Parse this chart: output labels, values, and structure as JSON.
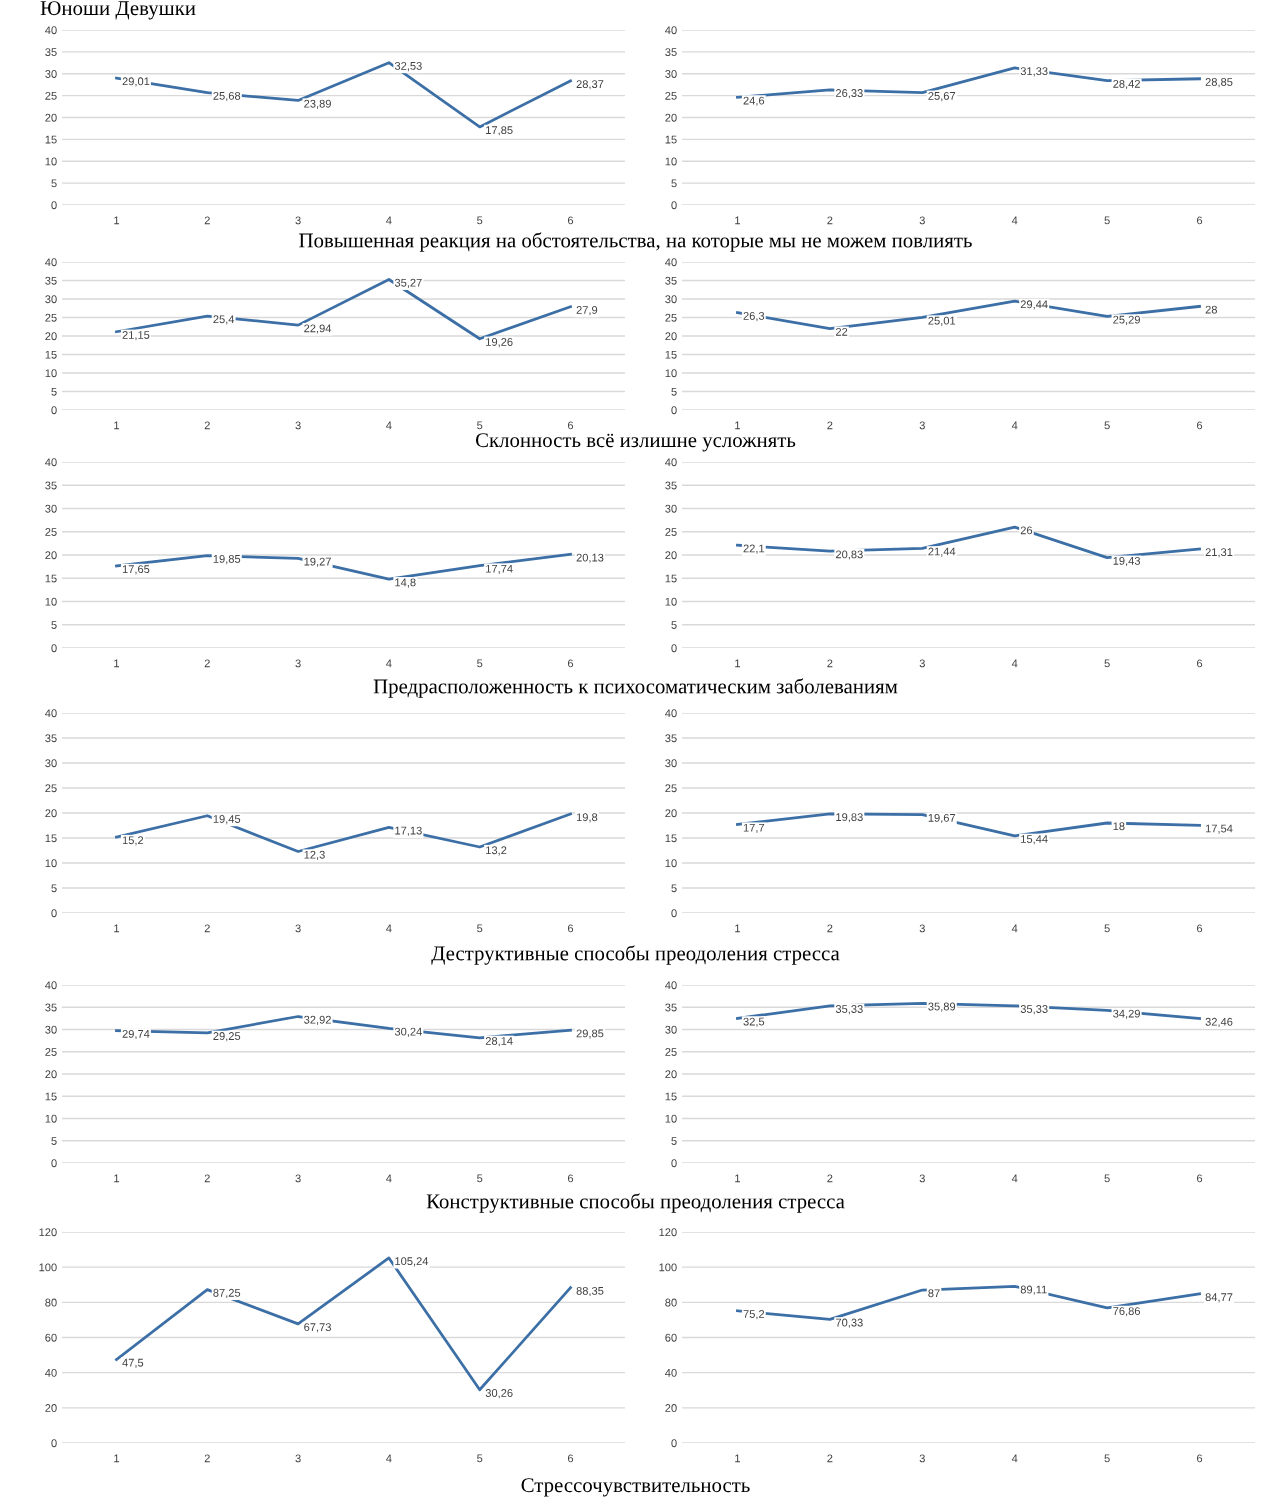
{
  "chart_data": [
    {
      "type": "line",
      "title": "Юноши Девушки",
      "categories": [
        "1",
        "2",
        "3",
        "4",
        "5",
        "6"
      ],
      "series": [
        {
          "color": "#3c6fa6",
          "values": [
            29.01,
            25.68,
            23.89,
            32.53,
            17.85,
            28.37
          ],
          "value_labels": [
            "29,01",
            "25,68",
            "23,89",
            "32,53",
            "17,85",
            "28,37"
          ]
        }
      ],
      "ylim": [
        0,
        40
      ],
      "yticks": [
        0,
        5,
        10,
        15,
        20,
        25,
        30,
        35,
        40
      ],
      "grid": "y",
      "annotations": [
        "Повышенная реакция на обстоятельства, на которые мы не можем повлиять"
      ]
    },
    {
      "type": "line",
      "categories": [
        "1",
        "2",
        "3",
        "4",
        "5",
        "6"
      ],
      "series": [
        {
          "color": "#3c6fa6",
          "values": [
            24.6,
            26.33,
            25.67,
            31.33,
            28.42,
            28.85
          ],
          "value_labels": [
            "24,6",
            "26,33",
            "25,67",
            "31,33",
            "28,42",
            "28,85"
          ]
        }
      ],
      "ylim": [
        0,
        40
      ],
      "yticks": [
        0,
        5,
        10,
        15,
        20,
        25,
        30,
        35,
        40
      ],
      "grid": "y"
    },
    {
      "type": "line",
      "categories": [
        "1",
        "2",
        "3",
        "4",
        "5",
        "6"
      ],
      "series": [
        {
          "color": "#3c6fa6",
          "values": [
            21.15,
            25.4,
            22.94,
            35.27,
            19.26,
            27.9
          ],
          "value_labels": [
            "21,15",
            "25,4",
            "22,94",
            "35,27",
            "19,26",
            "27,9"
          ]
        }
      ],
      "ylim": [
        0,
        40
      ],
      "yticks": [
        0,
        5,
        10,
        15,
        20,
        25,
        30,
        35,
        40
      ],
      "grid": "y",
      "annotations": [
        "Склонность всё излишне усложнять"
      ]
    },
    {
      "type": "line",
      "categories": [
        "1",
        "2",
        "3",
        "4",
        "5",
        "6"
      ],
      "series": [
        {
          "color": "#3c6fa6",
          "values": [
            26.3,
            22,
            25.01,
            29.44,
            25.29,
            28
          ],
          "value_labels": [
            "26,3",
            "22",
            "25,01",
            "29,44",
            "25,29",
            "28"
          ]
        }
      ],
      "ylim": [
        0,
        40
      ],
      "yticks": [
        0,
        5,
        10,
        15,
        20,
        25,
        30,
        35,
        40
      ],
      "grid": "y"
    },
    {
      "type": "line",
      "categories": [
        "1",
        "2",
        "3",
        "4",
        "5",
        "6"
      ],
      "series": [
        {
          "color": "#3c6fa6",
          "values": [
            17.65,
            19.85,
            19.27,
            14.8,
            17.74,
            20.13
          ],
          "value_labels": [
            "17,65",
            "19,85",
            "19,27",
            "14,8",
            "17,74",
            "20,13"
          ]
        }
      ],
      "ylim": [
        0,
        40
      ],
      "yticks": [
        0,
        5,
        10,
        15,
        20,
        25,
        30,
        35,
        40
      ],
      "grid": "y",
      "annotations": [
        "Предрасположенность к психосоматическим заболеваниям"
      ]
    },
    {
      "type": "line",
      "categories": [
        "1",
        "2",
        "3",
        "4",
        "5",
        "6"
      ],
      "series": [
        {
          "color": "#3c6fa6",
          "values": [
            22.1,
            20.83,
            21.44,
            26,
            19.43,
            21.31
          ],
          "value_labels": [
            "22,1",
            "20,83",
            "21,44",
            "26",
            "19,43",
            "21,31"
          ]
        }
      ],
      "ylim": [
        0,
        40
      ],
      "yticks": [
        0,
        5,
        10,
        15,
        20,
        25,
        30,
        35,
        40
      ],
      "grid": "y"
    },
    {
      "type": "line",
      "categories": [
        "1",
        "2",
        "3",
        "4",
        "5",
        "6"
      ],
      "series": [
        {
          "color": "#3c6fa6",
          "values": [
            15.2,
            19.45,
            12.3,
            17.13,
            13.2,
            19.8
          ],
          "value_labels": [
            "15,2",
            "19,45",
            "12,3",
            "17,13",
            "13,2",
            "19,8"
          ]
        }
      ],
      "ylim": [
        0,
        40
      ],
      "yticks": [
        0,
        5,
        10,
        15,
        20,
        25,
        30,
        35,
        40
      ],
      "grid": "y",
      "annotations": [
        "Деструктивные способы преодоления стресса"
      ]
    },
    {
      "type": "line",
      "categories": [
        "1",
        "2",
        "3",
        "4",
        "5",
        "6"
      ],
      "series": [
        {
          "color": "#3c6fa6",
          "values": [
            17.7,
            19.83,
            19.67,
            15.44,
            18,
            17.54
          ],
          "value_labels": [
            "17,7",
            "19,83",
            "19,67",
            "15,44",
            "18",
            "17,54"
          ]
        }
      ],
      "ylim": [
        0,
        40
      ],
      "yticks": [
        0,
        5,
        10,
        15,
        20,
        25,
        30,
        35,
        40
      ],
      "grid": "y"
    },
    {
      "type": "line",
      "categories": [
        "1",
        "2",
        "3",
        "4",
        "5",
        "6"
      ],
      "series": [
        {
          "color": "#3c6fa6",
          "values": [
            29.74,
            29.25,
            32.92,
            30.24,
            28.14,
            29.85
          ],
          "value_labels": [
            "29,74",
            "29,25",
            "32,92",
            "30,24",
            "28,14",
            "29,85"
          ]
        }
      ],
      "ylim": [
        0,
        40
      ],
      "yticks": [
        0,
        5,
        10,
        15,
        20,
        25,
        30,
        35,
        40
      ],
      "grid": "y",
      "annotations": [
        "Конструктивные способы преодоления стресса"
      ]
    },
    {
      "type": "line",
      "categories": [
        "1",
        "2",
        "3",
        "4",
        "5",
        "6"
      ],
      "series": [
        {
          "color": "#3c6fa6",
          "values": [
            32.5,
            35.33,
            35.89,
            35.33,
            34.29,
            32.46
          ],
          "value_labels": [
            "32,5",
            "35,33",
            "35,89",
            "35,33",
            "34,29",
            "32,46"
          ]
        }
      ],
      "ylim": [
        0,
        40
      ],
      "yticks": [
        0,
        5,
        10,
        15,
        20,
        25,
        30,
        35,
        40
      ],
      "grid": "y"
    },
    {
      "type": "line",
      "categories": [
        "1",
        "2",
        "3",
        "4",
        "5",
        "6"
      ],
      "series": [
        {
          "color": "#3c6fa6",
          "values": [
            47.5,
            87.25,
            67.73,
            105.24,
            30.26,
            88.35
          ],
          "value_labels": [
            "47,5",
            "87,25",
            "67,73",
            "105,24",
            "30,26",
            "88,35"
          ]
        }
      ],
      "ylim": [
        0,
        120
      ],
      "yticks": [
        0,
        20,
        40,
        60,
        80,
        100,
        120
      ],
      "grid": "y",
      "annotations": [
        "Стрессочувствительность"
      ]
    },
    {
      "type": "line",
      "categories": [
        "1",
        "2",
        "3",
        "4",
        "5",
        "6"
      ],
      "series": [
        {
          "color": "#3c6fa6",
          "values": [
            75.2,
            70.33,
            87,
            89.11,
            76.86,
            84.77
          ],
          "value_labels": [
            "75,2",
            "70,33",
            "87",
            "89,11",
            "76,86",
            "84,77"
          ]
        }
      ],
      "ylim": [
        0,
        120
      ],
      "yticks": [
        0,
        20,
        40,
        60,
        80,
        100,
        120
      ],
      "grid": "y"
    }
  ]
}
